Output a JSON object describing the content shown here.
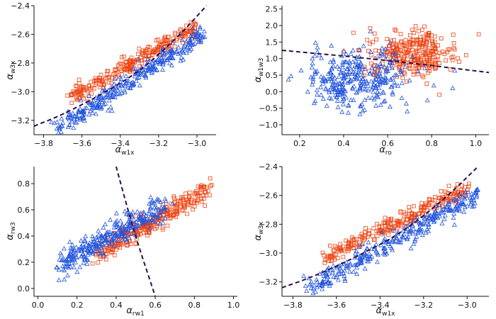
{
  "colors": {
    "red": "#ee4411",
    "blue": "#2255dd",
    "curve": "#2b0f4d"
  },
  "panels": [
    {
      "id": "a",
      "xlabel": "α",
      "xsub": "w1x",
      "ylabel": "α",
      "ysub": "w3x"
    },
    {
      "id": "b",
      "xlabel": "α",
      "xsub": "ro",
      "ylabel": "α",
      "ysub": "w1w3"
    },
    {
      "id": "c",
      "xlabel": "α",
      "xsub": "rw1",
      "ylabel": "α",
      "ysub": "rw3"
    },
    {
      "id": "d",
      "xlabel": "α",
      "xsub": "w1x",
      "ylabel": "α",
      "ysub": "w3x"
    }
  ],
  "chart_data": [
    {
      "type": "scatter",
      "title": "",
      "xlabel": "α_w1x",
      "ylabel": "α_w3x",
      "xlim": [
        -3.85,
        -2.9
      ],
      "ylim": [
        -3.3,
        -2.4
      ],
      "xticks": [
        -3.8,
        -3.6,
        -3.4,
        -3.2,
        -3.0
      ],
      "xtick_labels": [
        "−3.8",
        "−3.6",
        "−3.4",
        "−3.2",
        "−3.0"
      ],
      "yticks": [
        -3.2,
        -3.0,
        -2.8,
        -2.6,
        -2.4
      ],
      "ytick_labels": [
        "−3.2",
        "−3.0",
        "−2.8",
        "−2.6",
        "−2.4"
      ],
      "series": [
        {
          "name": "squares",
          "marker": "square",
          "color": "#ee4411",
          "cluster": {
            "line_x": [
              -3.65,
              -3.0
            ],
            "line_y": [
              -3.03,
              -2.55
            ],
            "spread": 0.035,
            "n": 260
          }
        },
        {
          "name": "triangles",
          "marker": "triangle",
          "color": "#2255dd",
          "cluster": {
            "line_x": [
              -3.72,
              -2.95
            ],
            "line_y": [
              -3.25,
              -2.58
            ],
            "spread": 0.04,
            "n": 320
          }
        }
      ],
      "curve": {
        "style": "dashed",
        "color": "#2b0f4d",
        "x": [
          -3.85,
          -3.7,
          -3.5,
          -3.3,
          -3.1,
          -2.95
        ],
        "y": [
          -3.24,
          -3.16,
          -3.02,
          -2.86,
          -2.62,
          -2.4
        ]
      }
    },
    {
      "type": "scatter",
      "title": "",
      "xlabel": "α_ro",
      "ylabel": "α_w1w3",
      "xlim": [
        0.12,
        1.06
      ],
      "ylim": [
        -1.3,
        2.6
      ],
      "xticks": [
        0.2,
        0.4,
        0.6,
        0.8,
        1.0
      ],
      "xtick_labels": [
        "0.2",
        "0.4",
        "0.6",
        "0.8",
        "1.0"
      ],
      "yticks": [
        -1.0,
        -0.5,
        0.0,
        0.5,
        1.0,
        1.5,
        2.0,
        2.5
      ],
      "ytick_labels": [
        "−1.0",
        "−0.5",
        "0.0",
        "0.5",
        "1.0",
        "1.5",
        "2.0",
        "2.5"
      ],
      "series": [
        {
          "name": "squares",
          "marker": "square",
          "color": "#ee4411",
          "blob": {
            "cx": 0.71,
            "cy": 1.15,
            "sx": 0.1,
            "sy": 0.35,
            "n": 300
          }
        },
        {
          "name": "triangles",
          "marker": "triangle",
          "color": "#2255dd",
          "blob": {
            "cx": 0.45,
            "cy": 0.35,
            "sx": 0.12,
            "sy": 0.45,
            "n": 330
          }
        }
      ],
      "curve": {
        "style": "dashed",
        "color": "#2b0f4d",
        "x": [
          0.12,
          0.4,
          0.7,
          1.06
        ],
        "y": [
          1.25,
          1.08,
          0.87,
          0.58
        ]
      }
    },
    {
      "type": "scatter",
      "title": "",
      "xlabel": "α_rw1",
      "ylabel": "α_rw3",
      "xlim": [
        -0.02,
        1.02
      ],
      "ylim": [
        -0.06,
        0.93
      ],
      "xticks": [
        0.0,
        0.2,
        0.4,
        0.6,
        0.8,
        1.0
      ],
      "xtick_labels": [
        "0.0",
        "0.2",
        "0.4",
        "0.6",
        "0.8",
        "1.0"
      ],
      "yticks": [
        0.0,
        0.2,
        0.4,
        0.6,
        0.8
      ],
      "ytick_labels": [
        "0.0",
        "0.2",
        "0.4",
        "0.6",
        "0.8"
      ],
      "series": [
        {
          "name": "squares",
          "marker": "square",
          "color": "#ee4411",
          "cluster": {
            "line_x": [
              0.3,
              0.87
            ],
            "line_y": [
              0.26,
              0.76
            ],
            "spread": 0.04,
            "n": 300
          }
        },
        {
          "name": "triangles",
          "marker": "triangle",
          "color": "#2255dd",
          "cluster": {
            "line_x": [
              0.12,
              0.65
            ],
            "line_y": [
              0.18,
              0.64
            ],
            "spread": 0.05,
            "n": 320
          }
        }
      ],
      "curve": {
        "style": "dashed",
        "color": "#2b0f4d",
        "x": [
          0.4,
          0.46,
          0.52,
          0.6
        ],
        "y": [
          0.93,
          0.6,
          0.3,
          -0.06
        ]
      }
    },
    {
      "type": "scatter",
      "title": "",
      "xlabel": "α_w1x",
      "ylabel": "α_w3x",
      "xlim": [
        -3.85,
        -2.9
      ],
      "ylim": [
        -3.3,
        -2.4
      ],
      "xticks": [
        -3.8,
        -3.6,
        -3.4,
        -3.2,
        -3.0
      ],
      "xtick_labels": [
        "−3.8",
        "−3.6",
        "−3.4",
        "−3.2",
        "−3.0"
      ],
      "yticks": [
        -3.2,
        -3.0,
        -2.8,
        -2.6,
        -2.4
      ],
      "ytick_labels": [
        "−3.2",
        "−3.0",
        "−2.8",
        "−2.6",
        "−2.4"
      ],
      "series": [
        {
          "name": "squares",
          "marker": "square",
          "color": "#ee4411",
          "cluster": {
            "line_x": [
              -3.65,
              -3.0
            ],
            "line_y": [
              -3.03,
              -2.55
            ],
            "spread": 0.035,
            "n": 260
          }
        },
        {
          "name": "triangles",
          "marker": "triangle",
          "color": "#2255dd",
          "cluster": {
            "line_x": [
              -3.72,
              -2.95
            ],
            "line_y": [
              -3.25,
              -2.58
            ],
            "spread": 0.04,
            "n": 320
          }
        }
      ],
      "curve": {
        "style": "dashed",
        "color": "#2b0f4d",
        "x": [
          -3.85,
          -3.7,
          -3.5,
          -3.3,
          -3.1,
          -2.95
        ],
        "y": [
          -3.24,
          -3.16,
          -3.02,
          -2.86,
          -2.62,
          -2.4
        ]
      }
    }
  ]
}
